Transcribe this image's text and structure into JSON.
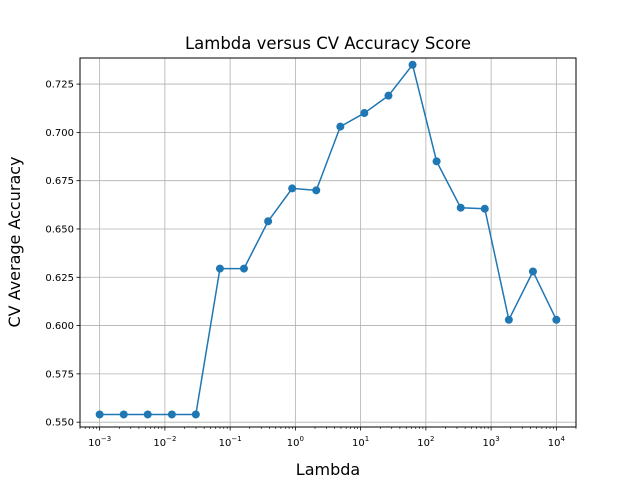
{
  "chart_data": {
    "type": "line",
    "title": "Lambda versus CV Accuracy Score",
    "xlabel": "Lambda",
    "ylabel": "CV Average Accuracy",
    "x_scale": "log",
    "xlim": [
      0.0005,
      20000
    ],
    "ylim": [
      0.5475,
      0.7385
    ],
    "grid": true,
    "x_ticks": [
      {
        "value": 0.001,
        "base": "10",
        "exp": "−3"
      },
      {
        "value": 0.01,
        "base": "10",
        "exp": "−2"
      },
      {
        "value": 0.1,
        "base": "10",
        "exp": "−1"
      },
      {
        "value": 1,
        "base": "10",
        "exp": "0"
      },
      {
        "value": 10,
        "base": "10",
        "exp": "1"
      },
      {
        "value": 100,
        "base": "10",
        "exp": "2"
      },
      {
        "value": 1000,
        "base": "10",
        "exp": "3"
      },
      {
        "value": 10000,
        "base": "10",
        "exp": "4"
      }
    ],
    "y_ticks": [
      "0.550",
      "0.575",
      "0.600",
      "0.625",
      "0.650",
      "0.675",
      "0.700",
      "0.725"
    ],
    "series": [
      {
        "color": "#1f77b4",
        "x": [
          0.001,
          0.00234,
          0.00546,
          0.0128,
          0.0298,
          0.0698,
          0.163,
          0.382,
          0.893,
          2.09,
          4.89,
          11.4,
          26.7,
          62.5,
          146,
          342,
          800,
          1870,
          4380,
          10000
        ],
        "y": [
          0.554,
          0.554,
          0.554,
          0.554,
          0.554,
          0.6295,
          0.6295,
          0.654,
          0.671,
          0.67,
          0.703,
          0.71,
          0.719,
          0.735,
          0.685,
          0.661,
          0.6605,
          0.603,
          0.628,
          0.603
        ]
      }
    ]
  }
}
